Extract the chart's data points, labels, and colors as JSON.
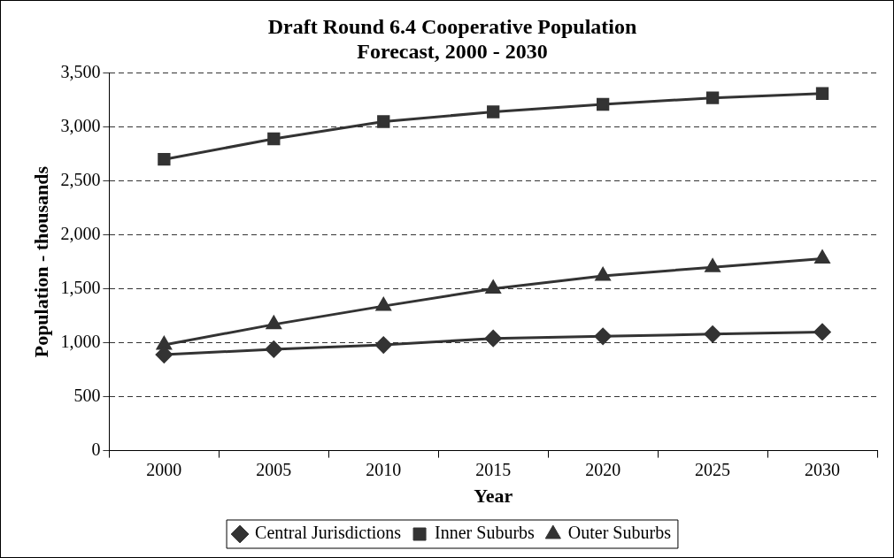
{
  "chart_data": {
    "type": "line",
    "title": "Draft Round 6.4 Cooperative Population\nForecast, 2000 - 2030",
    "xlabel": "Year",
    "ylabel": "Population - thousands",
    "categories": [
      "2000",
      "2005",
      "2010",
      "2015",
      "2020",
      "2025",
      "2030"
    ],
    "series": [
      {
        "name": "Central Jurisdictions",
        "color": "#333333",
        "marker": "diamond",
        "values": [
          890,
          940,
          980,
          1040,
          1060,
          1080,
          1100
        ]
      },
      {
        "name": "Inner Suburbs",
        "color": "#333333",
        "marker": "square",
        "values": [
          2700,
          2890,
          3050,
          3140,
          3210,
          3270,
          3310
        ]
      },
      {
        "name": "Outer Suburbs",
        "color": "#333333",
        "marker": "triangle",
        "values": [
          980,
          1170,
          1340,
          1500,
          1620,
          1700,
          1780
        ]
      }
    ],
    "ylim": [
      0,
      3500
    ],
    "yticks": [
      0,
      500,
      {
        "value": 1000,
        "label": "1,000"
      },
      {
        "value": 1500,
        "label": "1,500"
      },
      {
        "value": 2000,
        "label": "2,000"
      },
      {
        "value": 2500,
        "label": "2,500"
      },
      {
        "value": 3000,
        "label": "3,000"
      },
      {
        "value": 3500,
        "label": "3,500"
      }
    ],
    "grid": "y",
    "legend": "bottom",
    "line_style": "solid"
  }
}
